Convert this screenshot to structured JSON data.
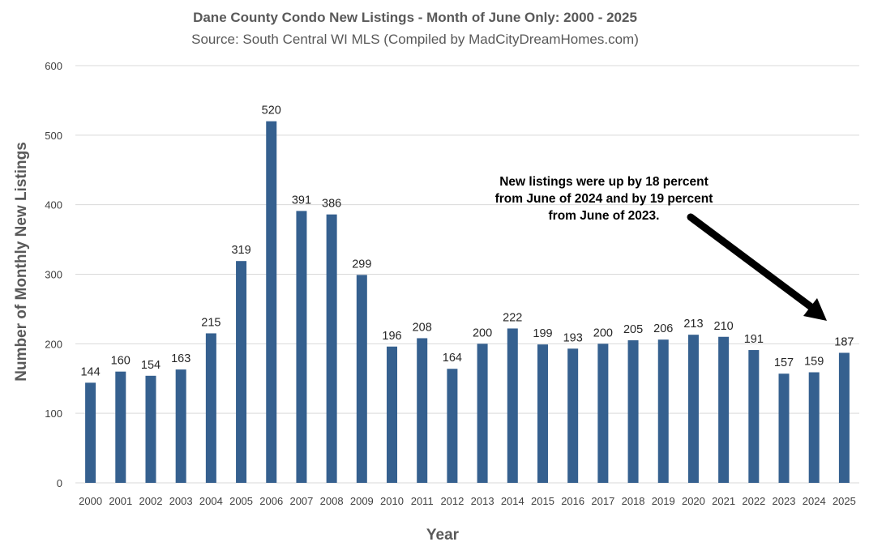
{
  "chart_data": {
    "type": "bar",
    "title": "Dane County Condo New Listings - Month of June Only: 2000 - 2025",
    "subtitle": "Source: South Central WI MLS (Compiled by MadCityDreamHomes.com)",
    "xlabel": "Year",
    "ylabel": "Number of Monthly New Listings",
    "categories": [
      "2000",
      "2001",
      "2002",
      "2003",
      "2004",
      "2005",
      "2006",
      "2007",
      "2008",
      "2009",
      "2010",
      "2011",
      "2012",
      "2013",
      "2014",
      "2015",
      "2016",
      "2017",
      "2018",
      "2019",
      "2020",
      "2021",
      "2022",
      "2023",
      "2024",
      "2025"
    ],
    "values": [
      144,
      160,
      154,
      163,
      215,
      319,
      520,
      391,
      386,
      299,
      196,
      208,
      164,
      200,
      222,
      199,
      193,
      200,
      205,
      206,
      213,
      210,
      191,
      157,
      159,
      187
    ],
    "ylim": [
      0,
      600
    ],
    "yticks": [
      0,
      100,
      200,
      300,
      400,
      500,
      600
    ],
    "grid": true,
    "legend": "none",
    "bar_color": "#35608f",
    "annotation": {
      "lines": [
        "New listings were up by 18 percent",
        "from June of 2024 and by 19 percent",
        "from June of 2023."
      ],
      "points_to": "2025"
    }
  }
}
